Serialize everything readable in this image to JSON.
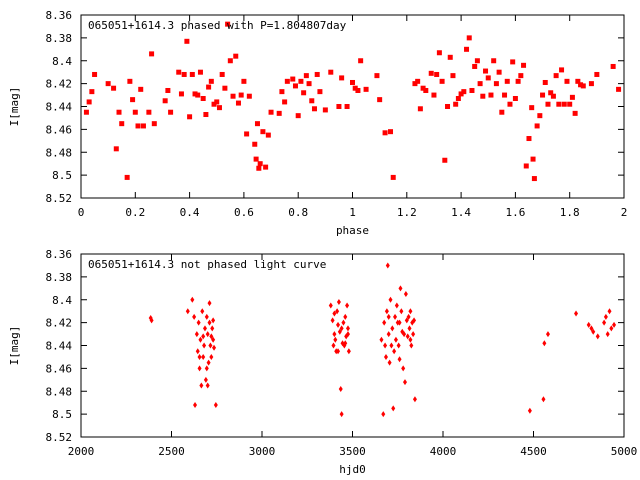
{
  "chart_data": [
    {
      "type": "scatter",
      "title": "065051+1614.3 phased with P=1.804807day",
      "xlabel": "phase",
      "ylabel": "I[mag]",
      "xlim": [
        0,
        2
      ],
      "ylim": [
        8.52,
        8.36
      ],
      "y_inverted": true,
      "xticks": [
        0,
        0.2,
        0.4,
        0.6,
        0.8,
        1,
        1.2,
        1.4,
        1.6,
        1.8,
        2
      ],
      "xtick_labels": [
        "0",
        "0.2",
        "0.4",
        "0.6",
        "0.8",
        "1",
        "1.2",
        "1.4",
        "1.6",
        "1.8",
        "2"
      ],
      "yticks": [
        8.36,
        8.38,
        8.4,
        8.42,
        8.44,
        8.46,
        8.48,
        8.5,
        8.52
      ],
      "ytick_labels": [
        "8.36",
        "8.38",
        "8.4",
        "8.42",
        "8.44",
        "8.46",
        "8.48",
        "8.5",
        "8.52"
      ],
      "grid": false,
      "legend": "none",
      "marker": "filled-square",
      "color": "#ff0000",
      "points": [
        [
          0.02,
          8.445
        ],
        [
          0.03,
          8.436
        ],
        [
          0.04,
          8.427
        ],
        [
          0.05,
          8.412
        ],
        [
          0.1,
          8.42
        ],
        [
          0.12,
          8.424
        ],
        [
          0.13,
          8.477
        ],
        [
          0.14,
          8.445
        ],
        [
          0.15,
          8.455
        ],
        [
          0.17,
          8.502
        ],
        [
          0.18,
          8.418
        ],
        [
          0.19,
          8.434
        ],
        [
          0.2,
          8.445
        ],
        [
          0.21,
          8.457
        ],
        [
          0.22,
          8.425
        ],
        [
          0.23,
          8.457
        ],
        [
          0.25,
          8.445
        ],
        [
          0.26,
          8.394
        ],
        [
          0.27,
          8.455
        ],
        [
          0.31,
          8.435
        ],
        [
          0.32,
          8.426
        ],
        [
          0.33,
          8.445
        ],
        [
          0.36,
          8.41
        ],
        [
          0.37,
          8.429
        ],
        [
          0.38,
          8.412
        ],
        [
          0.39,
          8.383
        ],
        [
          0.4,
          8.449
        ],
        [
          0.41,
          8.412
        ],
        [
          0.42,
          8.429
        ],
        [
          0.43,
          8.43
        ],
        [
          0.44,
          8.41
        ],
        [
          0.45,
          8.433
        ],
        [
          0.46,
          8.447
        ],
        [
          0.47,
          8.423
        ],
        [
          0.48,
          8.418
        ],
        [
          0.49,
          8.438
        ],
        [
          0.5,
          8.436
        ],
        [
          0.51,
          8.441
        ],
        [
          0.52,
          8.412
        ],
        [
          0.53,
          8.424
        ],
        [
          0.54,
          8.368
        ],
        [
          0.55,
          8.4
        ],
        [
          0.56,
          8.431
        ],
        [
          0.57,
          8.396
        ],
        [
          0.58,
          8.437
        ],
        [
          0.59,
          8.43
        ],
        [
          0.6,
          8.418
        ],
        [
          0.61,
          8.464
        ],
        [
          0.62,
          8.431
        ],
        [
          0.64,
          8.473
        ],
        [
          0.645,
          8.486
        ],
        [
          0.65,
          8.455
        ],
        [
          0.655,
          8.494
        ],
        [
          0.66,
          8.49
        ],
        [
          0.67,
          8.462
        ],
        [
          0.68,
          8.493
        ],
        [
          0.69,
          8.465
        ],
        [
          0.7,
          8.445
        ],
        [
          0.73,
          8.446
        ],
        [
          0.74,
          8.427
        ],
        [
          0.75,
          8.436
        ],
        [
          0.76,
          8.418
        ],
        [
          0.78,
          8.416
        ],
        [
          0.79,
          8.422
        ],
        [
          0.8,
          8.448
        ],
        [
          0.81,
          8.418
        ],
        [
          0.82,
          8.428
        ],
        [
          0.83,
          8.413
        ],
        [
          0.84,
          8.42
        ],
        [
          0.85,
          8.435
        ],
        [
          0.86,
          8.442
        ],
        [
          0.87,
          8.412
        ],
        [
          0.88,
          8.427
        ],
        [
          0.9,
          8.443
        ],
        [
          0.92,
          8.41
        ],
        [
          0.95,
          8.44
        ],
        [
          0.96,
          8.415
        ],
        [
          0.98,
          8.44
        ],
        [
          1,
          8.419
        ],
        [
          1.01,
          8.424
        ],
        [
          1.02,
          8.426
        ],
        [
          1.03,
          8.4
        ],
        [
          1.05,
          8.425
        ],
        [
          1.09,
          8.413
        ],
        [
          1.1,
          8.434
        ],
        [
          1.12,
          8.463
        ],
        [
          1.14,
          8.462
        ],
        [
          1.15,
          8.502
        ],
        [
          1.23,
          8.42
        ],
        [
          1.24,
          8.418
        ],
        [
          1.25,
          8.442
        ],
        [
          1.26,
          8.424
        ],
        [
          1.27,
          8.426
        ],
        [
          1.29,
          8.411
        ],
        [
          1.3,
          8.43
        ],
        [
          1.31,
          8.412
        ],
        [
          1.32,
          8.393
        ],
        [
          1.33,
          8.418
        ],
        [
          1.34,
          8.487
        ],
        [
          1.35,
          8.44
        ],
        [
          1.36,
          8.397
        ],
        [
          1.37,
          8.413
        ],
        [
          1.38,
          8.438
        ],
        [
          1.39,
          8.433
        ],
        [
          1.4,
          8.429
        ],
        [
          1.41,
          8.427
        ],
        [
          1.42,
          8.39
        ],
        [
          1.43,
          8.38
        ],
        [
          1.44,
          8.426
        ],
        [
          1.45,
          8.405
        ],
        [
          1.46,
          8.4
        ],
        [
          1.47,
          8.42
        ],
        [
          1.48,
          8.431
        ],
        [
          1.49,
          8.409
        ],
        [
          1.5,
          8.415
        ],
        [
          1.51,
          8.43
        ],
        [
          1.52,
          8.4
        ],
        [
          1.53,
          8.42
        ],
        [
          1.54,
          8.41
        ],
        [
          1.55,
          8.445
        ],
        [
          1.56,
          8.43
        ],
        [
          1.57,
          8.418
        ],
        [
          1.58,
          8.438
        ],
        [
          1.59,
          8.401
        ],
        [
          1.6,
          8.433
        ],
        [
          1.61,
          8.418
        ],
        [
          1.62,
          8.413
        ],
        [
          1.63,
          8.404
        ],
        [
          1.64,
          8.492
        ],
        [
          1.65,
          8.468
        ],
        [
          1.66,
          8.441
        ],
        [
          1.665,
          8.486
        ],
        [
          1.67,
          8.503
        ],
        [
          1.68,
          8.457
        ],
        [
          1.69,
          8.448
        ],
        [
          1.7,
          8.43
        ],
        [
          1.71,
          8.419
        ],
        [
          1.72,
          8.438
        ],
        [
          1.73,
          8.428
        ],
        [
          1.74,
          8.431
        ],
        [
          1.75,
          8.413
        ],
        [
          1.76,
          8.438
        ],
        [
          1.77,
          8.408
        ],
        [
          1.78,
          8.438
        ],
        [
          1.79,
          8.418
        ],
        [
          1.8,
          8.438
        ],
        [
          1.81,
          8.432
        ],
        [
          1.82,
          8.446
        ],
        [
          1.83,
          8.418
        ],
        [
          1.84,
          8.421
        ],
        [
          1.85,
          8.422
        ],
        [
          1.88,
          8.42
        ],
        [
          1.9,
          8.412
        ],
        [
          1.96,
          8.405
        ],
        [
          1.98,
          8.425
        ]
      ]
    },
    {
      "type": "scatter",
      "title": "065051+1614.3 not phased light curve",
      "xlabel": "hjd0",
      "ylabel": "I[mag]",
      "xlim": [
        2000,
        5000
      ],
      "ylim": [
        8.52,
        8.36
      ],
      "y_inverted": true,
      "xticks": [
        2000,
        2500,
        3000,
        3500,
        4000,
        4500,
        5000
      ],
      "xtick_labels": [
        "2000",
        "2500",
        "3000",
        "3500",
        "4000",
        "4500",
        "5000"
      ],
      "yticks": [
        8.36,
        8.38,
        8.4,
        8.42,
        8.44,
        8.46,
        8.48,
        8.5,
        8.52
      ],
      "ytick_labels": [
        "8.36",
        "8.38",
        "8.4",
        "8.42",
        "8.44",
        "8.46",
        "8.48",
        "8.5",
        "8.52"
      ],
      "grid": false,
      "legend": "none",
      "marker": "diamond",
      "color": "#ff0000",
      "points": [
        [
          2385,
          8.416
        ],
        [
          2390,
          8.418
        ],
        [
          2590,
          8.41
        ],
        [
          2615,
          8.4
        ],
        [
          2625,
          8.415
        ],
        [
          2630,
          8.492
        ],
        [
          2640,
          8.43
        ],
        [
          2645,
          8.445
        ],
        [
          2650,
          8.42
        ],
        [
          2655,
          8.46
        ],
        [
          2660,
          8.435
        ],
        [
          2665,
          8.475
        ],
        [
          2670,
          8.41
        ],
        [
          2675,
          8.45
        ],
        [
          2680,
          8.44
        ],
        [
          2685,
          8.425
        ],
        [
          2690,
          8.47
        ],
        [
          2695,
          8.415
        ],
        [
          2700,
          8.43
        ],
        [
          2705,
          8.455
        ],
        [
          2710,
          8.42
        ],
        [
          2715,
          8.44
        ],
        [
          2720,
          8.45
        ],
        [
          2725,
          8.425
        ],
        [
          2730,
          8.435
        ],
        [
          2735,
          8.442
        ],
        [
          2745,
          8.492
        ],
        [
          2655,
          8.45
        ],
        [
          2675,
          8.432
        ],
        [
          2695,
          8.46
        ],
        [
          2700,
          8.475
        ],
        [
          2710,
          8.403
        ],
        [
          2720,
          8.432
        ],
        [
          2730,
          8.418
        ],
        [
          3380,
          8.405
        ],
        [
          3390,
          8.418
        ],
        [
          3395,
          8.44
        ],
        [
          3400,
          8.43
        ],
        [
          3405,
          8.435
        ],
        [
          3410,
          8.445
        ],
        [
          3415,
          8.41
        ],
        [
          3420,
          8.422
        ],
        [
          3425,
          8.402
        ],
        [
          3430,
          8.428
        ],
        [
          3435,
          8.478
        ],
        [
          3440,
          8.5
        ],
        [
          3445,
          8.438
        ],
        [
          3450,
          8.42
        ],
        [
          3455,
          8.44
        ],
        [
          3460,
          8.415
        ],
        [
          3465,
          8.432
        ],
        [
          3470,
          8.405
        ],
        [
          3475,
          8.425
        ],
        [
          3480,
          8.445
        ],
        [
          3400,
          8.412
        ],
        [
          3420,
          8.445
        ],
        [
          3440,
          8.425
        ],
        [
          3460,
          8.438
        ],
        [
          3475,
          8.43
        ],
        [
          3660,
          8.435
        ],
        [
          3670,
          8.5
        ],
        [
          3675,
          8.42
        ],
        [
          3680,
          8.44
        ],
        [
          3685,
          8.45
        ],
        [
          3690,
          8.41
        ],
        [
          3695,
          8.37
        ],
        [
          3700,
          8.43
        ],
        [
          3705,
          8.455
        ],
        [
          3710,
          8.4
        ],
        [
          3715,
          8.44
        ],
        [
          3720,
          8.425
        ],
        [
          3725,
          8.495
        ],
        [
          3730,
          8.445
        ],
        [
          3735,
          8.415
        ],
        [
          3740,
          8.435
        ],
        [
          3745,
          8.405
        ],
        [
          3750,
          8.42
        ],
        [
          3755,
          8.44
        ],
        [
          3760,
          8.452
        ],
        [
          3765,
          8.39
        ],
        [
          3770,
          8.41
        ],
        [
          3775,
          8.428
        ],
        [
          3780,
          8.46
        ],
        [
          3785,
          8.43
        ],
        [
          3790,
          8.472
        ],
        [
          3795,
          8.395
        ],
        [
          3800,
          8.418
        ],
        [
          3805,
          8.432
        ],
        [
          3810,
          8.415
        ],
        [
          3815,
          8.425
        ],
        [
          3820,
          8.41
        ],
        [
          3825,
          8.44
        ],
        [
          3830,
          8.42
        ],
        [
          3835,
          8.43
        ],
        [
          3840,
          8.418
        ],
        [
          3845,
          8.487
        ],
        [
          3700,
          8.415
        ],
        [
          3760,
          8.42
        ],
        [
          3820,
          8.435
        ],
        [
          4480,
          8.497
        ],
        [
          4555,
          8.487
        ],
        [
          4560,
          8.438
        ],
        [
          4580,
          8.43
        ],
        [
          4735,
          8.412
        ],
        [
          4805,
          8.422
        ],
        [
          4820,
          8.425
        ],
        [
          4830,
          8.428
        ],
        [
          4855,
          8.432
        ],
        [
          4890,
          8.42
        ],
        [
          4900,
          8.415
        ],
        [
          4910,
          8.43
        ],
        [
          4920,
          8.41
        ],
        [
          4930,
          8.425
        ],
        [
          4945,
          8.422
        ]
      ]
    }
  ]
}
